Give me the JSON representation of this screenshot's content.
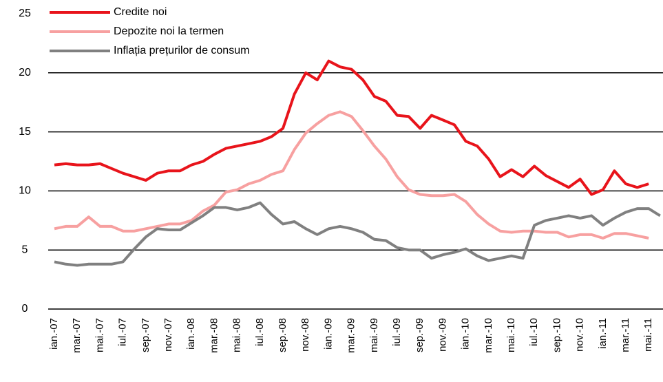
{
  "chart_data": {
    "type": "line",
    "categories": [
      "ian.-07",
      null,
      "mar.-07",
      null,
      "mai.-07",
      null,
      "iul.-07",
      null,
      "sep.-07",
      null,
      "nov.-07",
      null,
      "ian.-08",
      null,
      "mar.-08",
      null,
      "mai.-08",
      null,
      "iul.-08",
      null,
      "sep.-08",
      null,
      "nov.-08",
      null,
      "ian.-09",
      null,
      "mar.-09",
      null,
      "mai.-09",
      null,
      "iul.-09",
      null,
      "sep.-09",
      null,
      "nov.-09",
      null,
      "ian.-10",
      null,
      "mar.-10",
      null,
      "mai.-10",
      null,
      "iul.-10",
      null,
      "sep.-10",
      null,
      "nov.-10",
      null,
      "ian.-11",
      null,
      "mar.-11",
      null,
      "mai.-11",
      null
    ],
    "series": [
      {
        "name": "Credite noi",
        "color": "#e8141b",
        "values": [
          12.2,
          12.3,
          12.2,
          12.2,
          12.3,
          11.9,
          11.5,
          11.2,
          10.9,
          11.5,
          11.7,
          11.7,
          12.2,
          12.5,
          13.1,
          13.6,
          13.8,
          14.0,
          14.2,
          14.6,
          15.3,
          18.2,
          20.0,
          19.4,
          21.0,
          20.5,
          20.3,
          19.4,
          18.0,
          17.6,
          16.4,
          16.3,
          15.3,
          16.4,
          16.0,
          15.6,
          14.2,
          13.8,
          12.7,
          11.2,
          11.8,
          11.2,
          12.1,
          11.3,
          10.8,
          10.3,
          11.0,
          9.7,
          10.1,
          11.7,
          10.6,
          10.3,
          10.6,
          null
        ]
      },
      {
        "name": "Depozite noi la termen",
        "color": "#f7a0a0",
        "values": [
          6.8,
          7.0,
          7.0,
          7.8,
          7.0,
          7.0,
          6.6,
          6.6,
          6.8,
          7.0,
          7.2,
          7.2,
          7.5,
          8.3,
          8.8,
          9.9,
          10.1,
          10.6,
          10.9,
          11.4,
          11.7,
          13.5,
          14.9,
          15.7,
          16.4,
          16.7,
          16.3,
          15.1,
          13.8,
          12.7,
          11.2,
          10.1,
          9.7,
          9.6,
          9.6,
          9.7,
          9.1,
          8.0,
          7.2,
          6.6,
          6.5,
          6.6,
          6.6,
          6.5,
          6.5,
          6.1,
          6.3,
          6.3,
          6.0,
          6.4,
          6.4,
          6.2,
          6.0,
          null
        ]
      },
      {
        "name": "Inflația prețurilor de consum",
        "color": "#808080",
        "values": [
          4.0,
          3.8,
          3.7,
          3.8,
          3.8,
          3.8,
          4.0,
          5.1,
          6.1,
          6.8,
          6.7,
          6.7,
          7.3,
          7.9,
          8.6,
          8.6,
          8.4,
          8.6,
          9.0,
          8.0,
          7.2,
          7.4,
          6.8,
          6.3,
          6.8,
          7.0,
          6.8,
          6.5,
          5.9,
          5.8,
          5.2,
          5.0,
          5.0,
          4.3,
          4.6,
          4.8,
          5.1,
          4.5,
          4.1,
          4.3,
          4.5,
          4.3,
          7.1,
          7.5,
          7.7,
          7.9,
          7.7,
          7.9,
          7.1,
          7.7,
          8.2,
          8.5,
          8.5,
          7.9
        ]
      }
    ],
    "ylim": [
      0,
      25
    ],
    "yticks": [
      0,
      5,
      10,
      15,
      20,
      25
    ],
    "grid": true,
    "legend": "upper left"
  }
}
